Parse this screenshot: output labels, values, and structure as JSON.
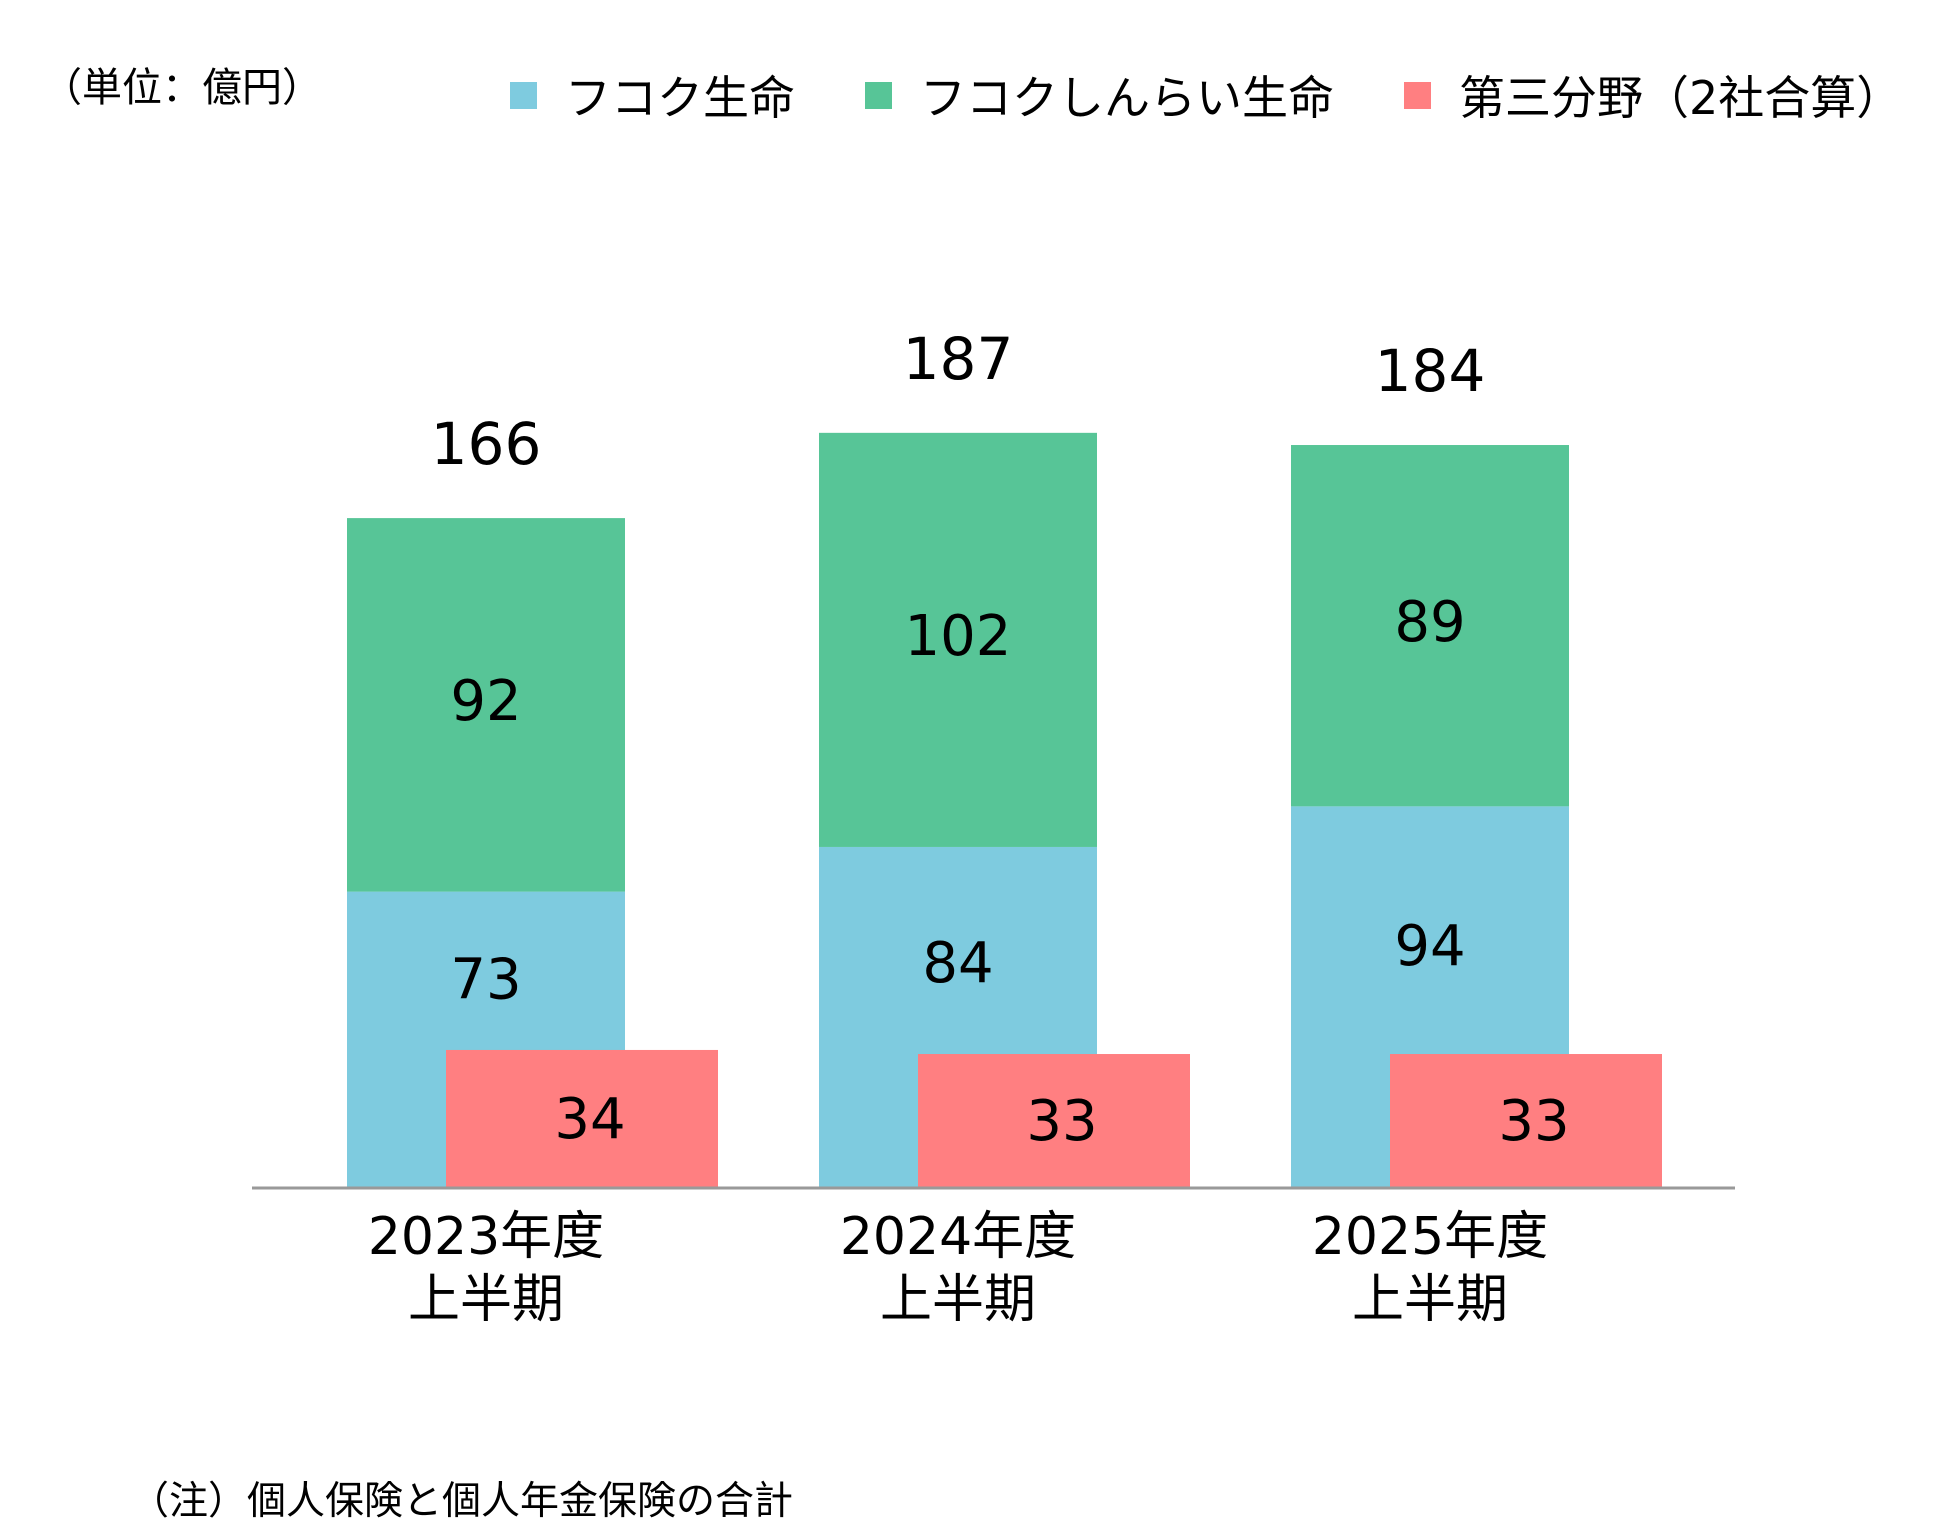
{
  "unit_label": "（単位：億円）",
  "note": "（注）個人保険と個人年金保険の合計",
  "chart_data": {
    "type": "bar",
    "categories": [
      [
        "2023年度",
        "上半期"
      ],
      [
        "2024年度",
        "上半期"
      ],
      [
        "2025年度",
        "上半期"
      ]
    ],
    "series": [
      {
        "name": "フコク生命",
        "color": "#7ecbdf",
        "values": [
          73,
          84,
          94
        ]
      },
      {
        "name": "フコクしんらい生命",
        "color": "#57c597",
        "values": [
          92,
          102,
          89
        ]
      },
      {
        "name": "第三分野（2社合算）",
        "color": "#ff7f81",
        "values": [
          34,
          33,
          33
        ]
      }
    ],
    "totals": [
      166,
      187,
      184
    ],
    "stacked_series": [
      "フコク生命",
      "フコクしんらい生命"
    ],
    "overlay_series": "第三分野（2社合算）",
    "legend_position": "top",
    "grid": false
  }
}
